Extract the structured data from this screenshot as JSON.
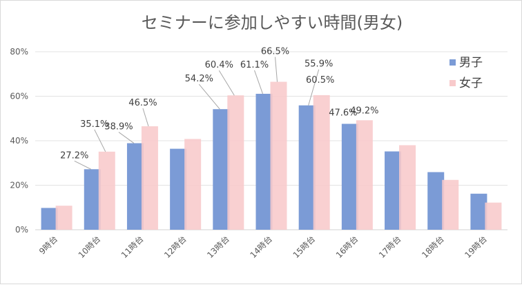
{
  "colors": {
    "male": "#7b9bd6",
    "female": "#f8cacb",
    "grid": "#e3e3e3",
    "text": "#595959"
  },
  "chart_data": {
    "type": "bar",
    "title": "セミナーに参加しやすい時間(男女)",
    "categories": [
      "9時台",
      "10時台",
      "11時台",
      "12時台",
      "13時台",
      "14時台",
      "15時台",
      "16時台",
      "17時台",
      "18時台",
      "19時台"
    ],
    "series": [
      {
        "name": "男子",
        "values": [
          9.8,
          27.2,
          38.9,
          36.4,
          54.2,
          61.1,
          55.9,
          47.6,
          35.2,
          25.9,
          16.2
        ]
      },
      {
        "name": "女子",
        "values": [
          10.8,
          35.1,
          46.5,
          40.8,
          60.4,
          66.5,
          60.5,
          49.2,
          38.0,
          22.4,
          12.2
        ]
      }
    ],
    "data_labels": [
      {
        "series": 0,
        "index": 1,
        "text": "27.2%"
      },
      {
        "series": 1,
        "index": 1,
        "text": "35.1%"
      },
      {
        "series": 0,
        "index": 2,
        "text": "38.9%"
      },
      {
        "series": 1,
        "index": 2,
        "text": "46.5%"
      },
      {
        "series": 0,
        "index": 4,
        "text": "54.2%"
      },
      {
        "series": 1,
        "index": 4,
        "text": "60.4%"
      },
      {
        "series": 0,
        "index": 5,
        "text": "61.1%"
      },
      {
        "series": 1,
        "index": 5,
        "text": "66.5%"
      },
      {
        "series": 0,
        "index": 6,
        "text": "55.9%"
      },
      {
        "series": 1,
        "index": 6,
        "text": "60.5%"
      },
      {
        "series": 0,
        "index": 7,
        "text": "47.6%"
      },
      {
        "series": 1,
        "index": 7,
        "text": "49.2%"
      }
    ],
    "yticks": [
      "0%",
      "20%",
      "40%",
      "60%",
      "80%"
    ],
    "ylim": [
      0,
      80
    ],
    "grid": true,
    "legend": "top-right",
    "xlabel": "",
    "ylabel": ""
  }
}
